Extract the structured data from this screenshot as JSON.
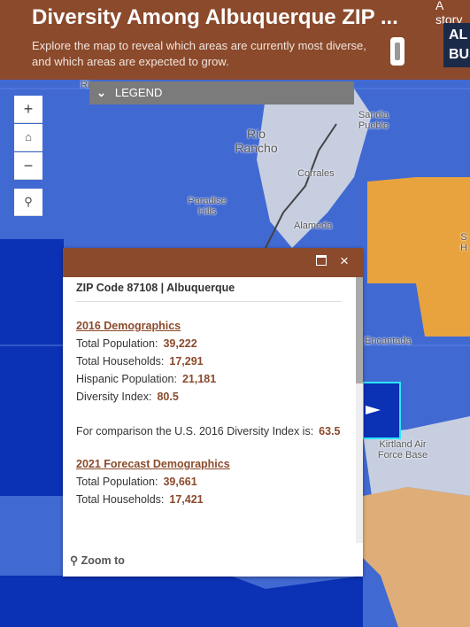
{
  "header": {
    "title": "Diversity Among Albuquerque ZIP ...",
    "subtitle": "Explore the map to reveal which areas are currently most diverse, and which areas are expected to grow.",
    "story_link": "A story",
    "logo_lines": [
      "AL",
      "BUS"
    ]
  },
  "legend": {
    "label": "LEGEND"
  },
  "map": {
    "labels": [
      "Ri",
      "Rio Rancho",
      "Sandia Pueblo",
      "Corrales",
      "Paradise Hills",
      "Alameda",
      "Encantada",
      "Kirtland Air Force Base",
      "S H"
    ]
  },
  "popup": {
    "title": "ZIP Code 87108 | Albuquerque",
    "sections": [
      {
        "heading": "2016 Demographics",
        "rows": [
          {
            "label": "Total Population:",
            "value": "39,222"
          },
          {
            "label": "Total Households:",
            "value": "17,291"
          },
          {
            "label": "Hispanic Population:",
            "value": "21,181"
          },
          {
            "label": "Diversity Index:",
            "value": "80.5"
          }
        ]
      },
      {
        "heading": "2021 Forecast Demographics",
        "rows": [
          {
            "label": "Total Population:",
            "value": "39,661"
          },
          {
            "label": "Total Households:",
            "value": "17,421"
          }
        ]
      }
    ],
    "comparison": {
      "text": "For comparison the U.S. 2016 Diversity Index is:",
      "value": "63.5"
    },
    "zoom_to": "Zoom to"
  }
}
